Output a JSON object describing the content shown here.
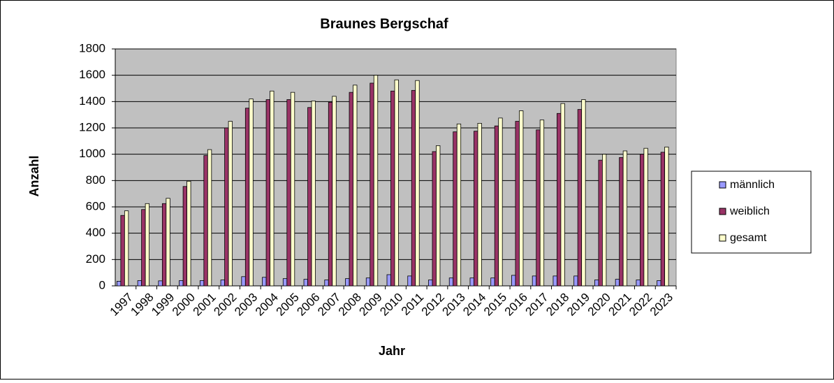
{
  "chart_data": {
    "type": "bar",
    "title": "Braunes Bergschaf",
    "x_label": "Jahr",
    "y_label": "Anzahl",
    "categories": [
      "1997",
      "1998",
      "1999",
      "2000",
      "2001",
      "2002",
      "2003",
      "2004",
      "2005",
      "2006",
      "2007",
      "2008",
      "2009",
      "2010",
      "2011",
      "2012",
      "2013",
      "2014",
      "2015",
      "2016",
      "2017",
      "2018",
      "2019",
      "2020",
      "2021",
      "2022",
      "2023"
    ],
    "series": [
      {
        "name": "männlich",
        "color": "#9999ff",
        "values": [
          35,
          40,
          38,
          40,
          40,
          45,
          70,
          65,
          55,
          50,
          45,
          55,
          60,
          85,
          75,
          45,
          60,
          60,
          60,
          80,
          75,
          75,
          75,
          45,
          50,
          45,
          40
        ]
      },
      {
        "name": "weiblich",
        "color": "#993366",
        "values": [
          535,
          580,
          625,
          755,
          990,
          1200,
          1350,
          1415,
          1415,
          1355,
          1395,
          1470,
          1540,
          1480,
          1485,
          1020,
          1170,
          1175,
          1215,
          1250,
          1185,
          1310,
          1340,
          955,
          975,
          1000,
          1015
        ]
      },
      {
        "name": "gesamt",
        "color": "#ffffcc",
        "values": [
          570,
          625,
          665,
          795,
          1035,
          1250,
          1420,
          1480,
          1470,
          1405,
          1440,
          1525,
          1600,
          1565,
          1560,
          1065,
          1230,
          1235,
          1275,
          1330,
          1260,
          1385,
          1415,
          1000,
          1025,
          1045,
          1055
        ]
      }
    ],
    "ylim": [
      0,
      1800
    ],
    "yticks": [
      0,
      200,
      400,
      600,
      800,
      1000,
      1200,
      1400,
      1600,
      1800
    ],
    "grid": true,
    "legend": "right"
  }
}
